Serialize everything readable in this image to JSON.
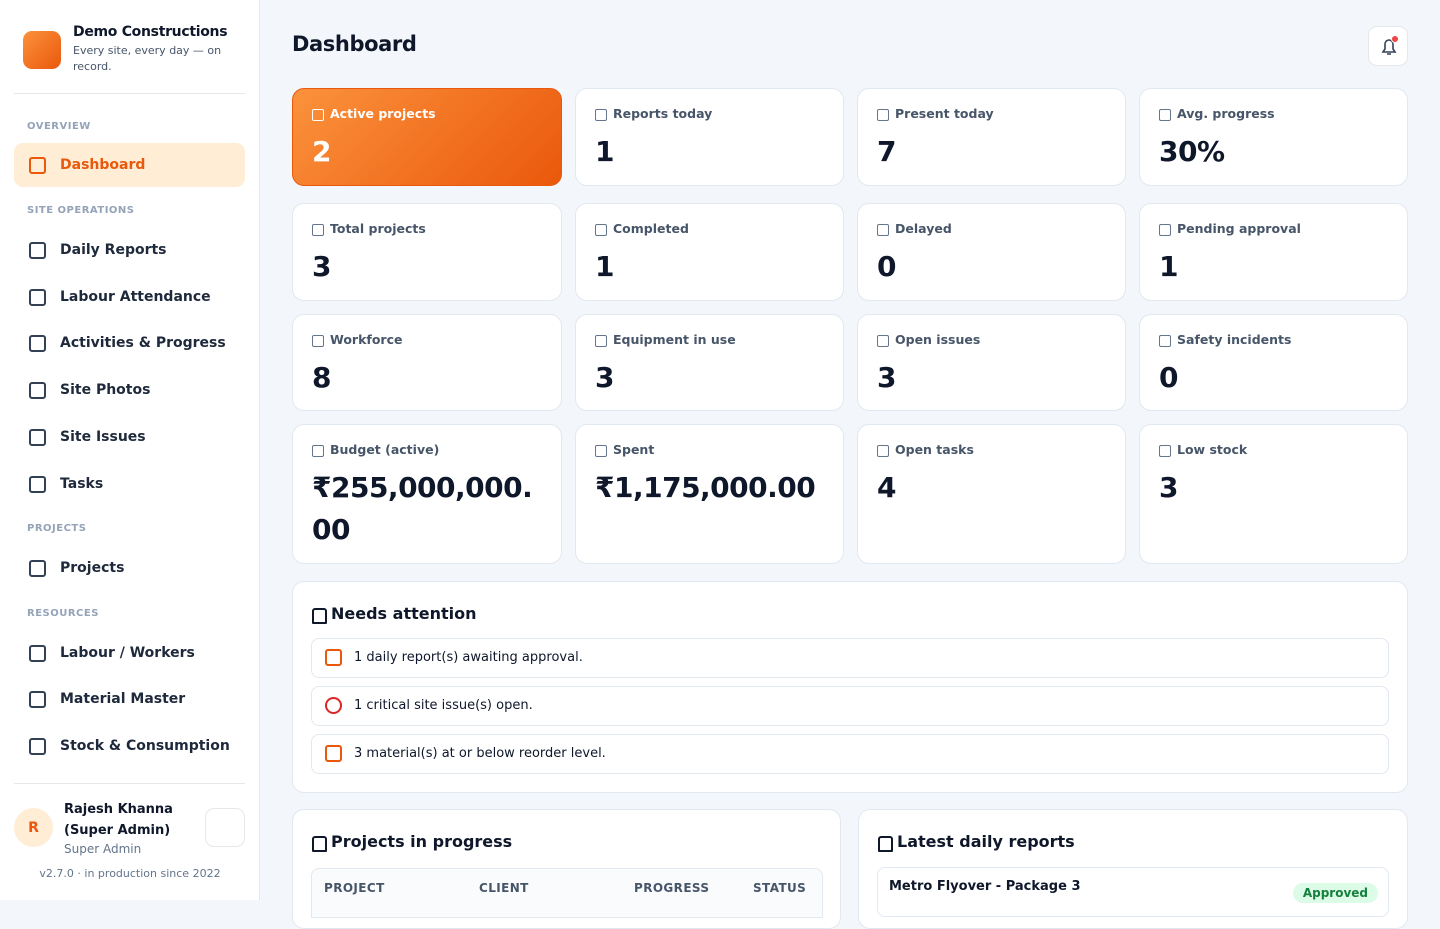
{
  "brand": {
    "name": "Demo Constructions",
    "tagline": "Every site, every day — on record."
  },
  "nav": [
    {
      "heading": "OVERVIEW",
      "items": [
        "Dashboard"
      ]
    },
    {
      "heading": "SITE OPERATIONS",
      "items": [
        "Daily Reports",
        "Labour Attendance",
        "Activities & Progress",
        "Site Photos",
        "Site Issues",
        "Tasks"
      ]
    },
    {
      "heading": "PROJECTS",
      "items": [
        "Projects"
      ]
    },
    {
      "heading": "RESOURCES",
      "items": [
        "Labour / Workers",
        "Material Master",
        "Stock & Consumption"
      ]
    }
  ],
  "user": {
    "initial": "R",
    "name": "Rajesh Khanna (Super Admin)",
    "role": "Super Admin"
  },
  "version": "v2.7.0 · in production since 2022",
  "page_title": "Dashboard",
  "stats": [
    {
      "label": "Active projects",
      "value": "2"
    },
    {
      "label": "Reports today",
      "value": "1"
    },
    {
      "label": "Present today",
      "value": "7"
    },
    {
      "label": "Avg. progress",
      "value": "30%"
    },
    {
      "label": "Total projects",
      "value": "3"
    },
    {
      "label": "Completed",
      "value": "1"
    },
    {
      "label": "Delayed",
      "value": "0"
    },
    {
      "label": "Pending approval",
      "value": "1"
    },
    {
      "label": "Workforce",
      "value": "8"
    },
    {
      "label": "Equipment in use",
      "value": "3"
    },
    {
      "label": "Open issues",
      "value": "3"
    },
    {
      "label": "Safety incidents",
      "value": "0"
    },
    {
      "label": "Budget (active)",
      "value": "₹255,000,000.00"
    },
    {
      "label": "Spent",
      "value": "₹1,175,000.00"
    },
    {
      "label": "Open tasks",
      "value": "4"
    },
    {
      "label": "Low stock",
      "value": "3"
    }
  ],
  "attention": {
    "title": "Needs attention",
    "items": [
      "1 daily report(s) awaiting approval.",
      "1 critical site issue(s) open.",
      "3 material(s) at or below reorder level."
    ]
  },
  "projects": {
    "title": "Projects in progress",
    "columns": [
      "PROJECT",
      "CLIENT",
      "PROGRESS",
      "STATUS"
    ]
  },
  "reports": {
    "title": "Latest daily reports",
    "items": [
      {
        "project": "Metro Flyover - Package 3",
        "status": "Approved"
      }
    ]
  }
}
